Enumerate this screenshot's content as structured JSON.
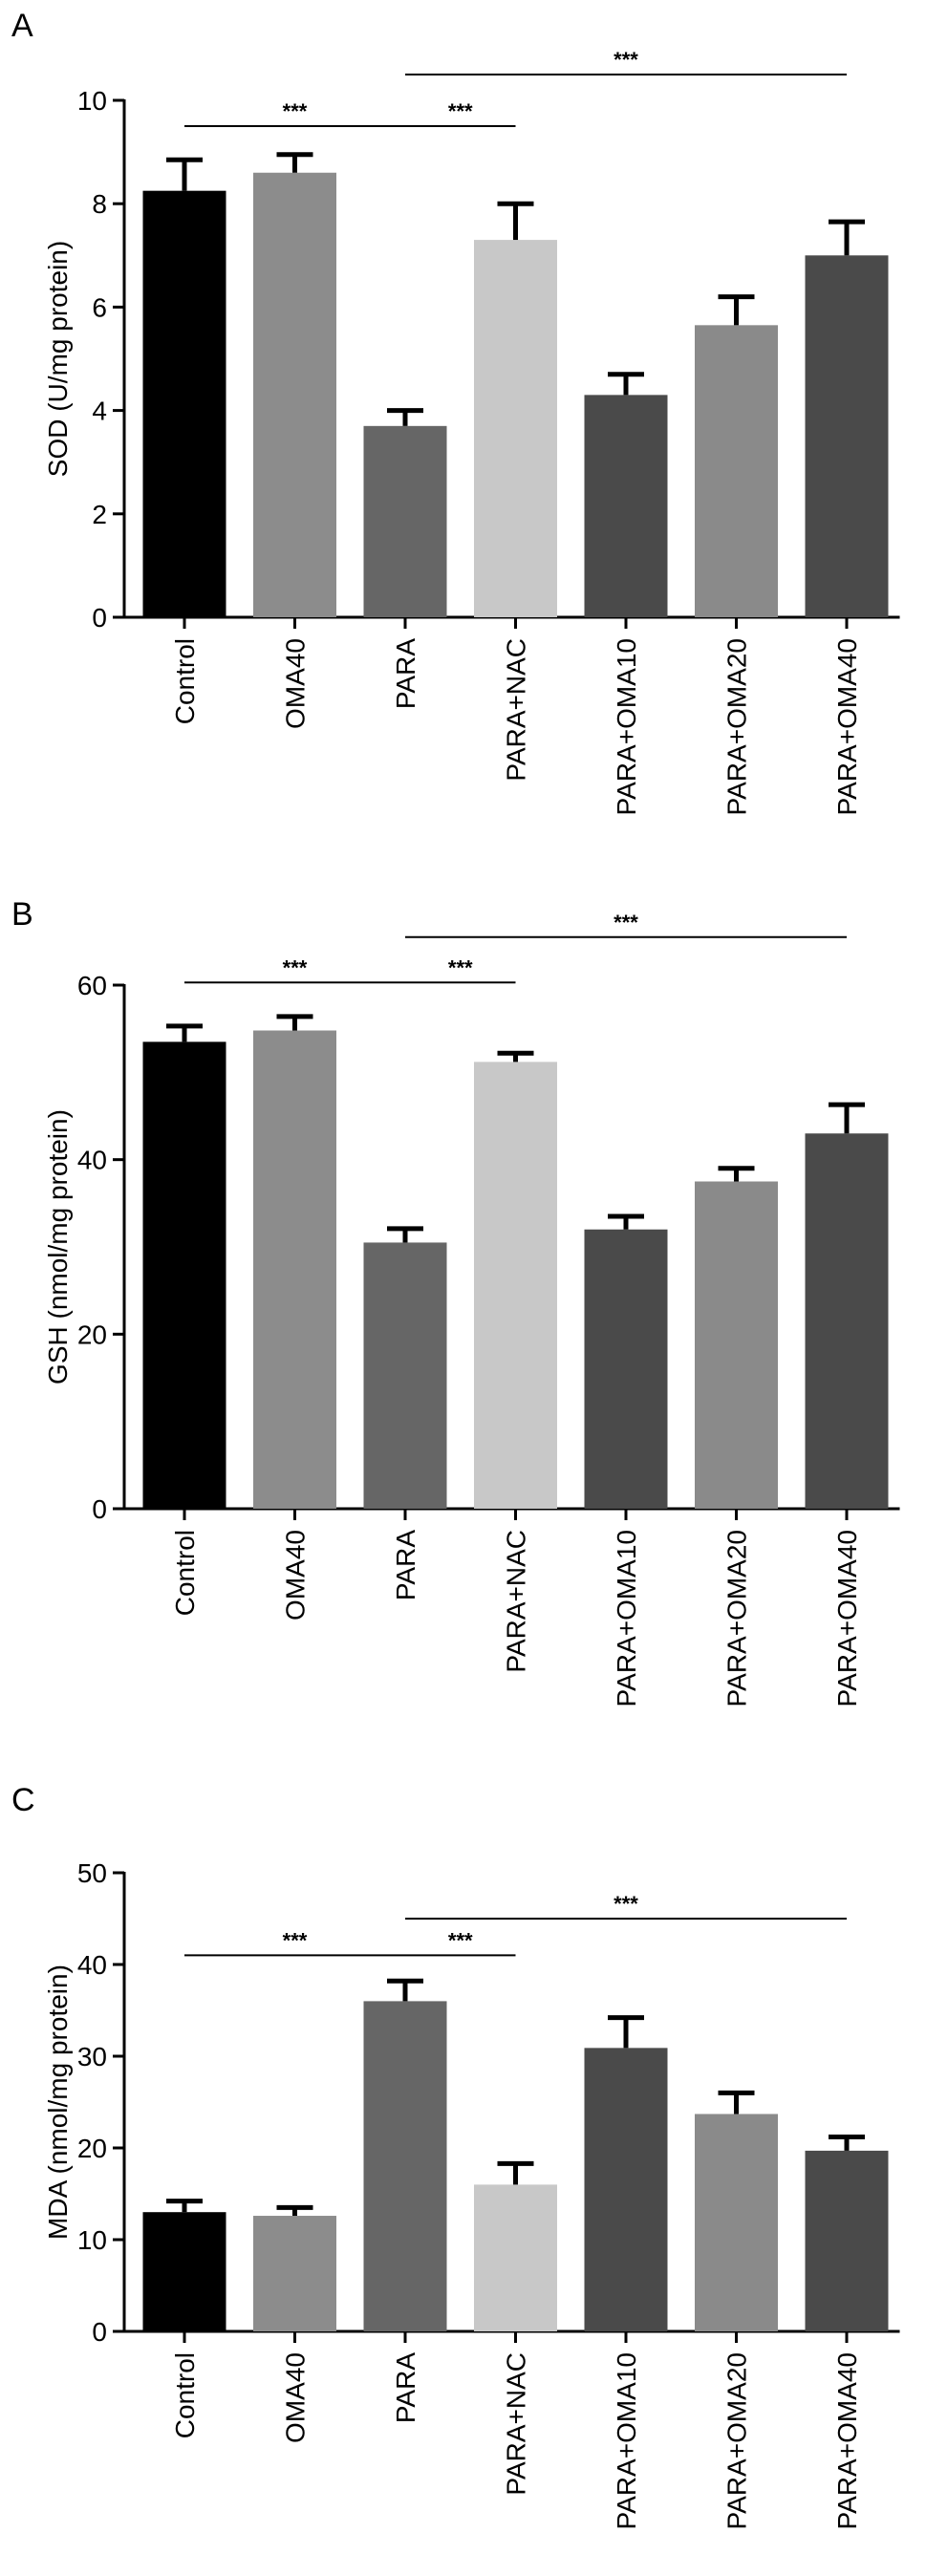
{
  "chart_data": [
    {
      "type": "bar",
      "panel_label": "A",
      "ylabel": "SOD (U/mg protein)",
      "ylim": [
        0,
        10
      ],
      "yticks": [
        "0",
        "2",
        "4",
        "6",
        "8",
        "10"
      ],
      "categories": [
        "Control",
        "OMA40",
        "PARA",
        "PARA+NAC",
        "PARA+OMA10",
        "PARA+OMA20",
        "PARA+OMA40"
      ],
      "values": [
        8.25,
        8.6,
        3.7,
        7.3,
        4.3,
        5.65,
        7.0
      ],
      "errors": [
        0.6,
        0.35,
        0.3,
        0.7,
        0.4,
        0.55,
        0.65
      ],
      "colors": [
        "#000000",
        "#8c8c8c",
        "#666666",
        "#c8c8c8",
        "#4a4a4a",
        "#8a8a8a",
        "#4a4a4a"
      ],
      "significance": [
        {
          "from": 0,
          "to": 2,
          "label": "***",
          "y": 9.5
        },
        {
          "from": 2,
          "to": 3,
          "label": "***",
          "y": 9.5
        },
        {
          "from": 2,
          "to": 6,
          "label": "***",
          "y": 10.5
        }
      ]
    },
    {
      "type": "bar",
      "panel_label": "B",
      "ylabel": "GSH (nmol/mg protein)",
      "ylim": [
        0,
        60
      ],
      "yticks": [
        "0",
        "20",
        "40",
        "60"
      ],
      "categories": [
        "Control",
        "OMA40",
        "PARA",
        "PARA+NAC",
        "PARA+OMA10",
        "PARA+OMA20",
        "PARA+OMA40"
      ],
      "values": [
        53.5,
        54.8,
        30.5,
        51.2,
        32.0,
        37.5,
        43.0
      ],
      "errors": [
        1.8,
        1.6,
        1.6,
        1.0,
        1.5,
        1.5,
        3.3
      ],
      "colors": [
        "#000000",
        "#8c8c8c",
        "#666666",
        "#c8c8c8",
        "#4a4a4a",
        "#8a8a8a",
        "#4a4a4a"
      ],
      "significance": [
        {
          "from": 0,
          "to": 2,
          "label": "***",
          "y": 60.3
        },
        {
          "from": 2,
          "to": 3,
          "label": "***",
          "y": 60.3
        },
        {
          "from": 2,
          "to": 6,
          "label": "***",
          "y": 65.5
        }
      ]
    },
    {
      "type": "bar",
      "panel_label": "C",
      "ylabel": "MDA (nmol/mg protein)",
      "ylim": [
        0,
        50
      ],
      "yticks": [
        "0",
        "10",
        "20",
        "30",
        "40",
        "50"
      ],
      "categories": [
        "Control",
        "OMA40",
        "PARA",
        "PARA+NAC",
        "PARA+OMA10",
        "PARA+OMA20",
        "PARA+OMA40"
      ],
      "values": [
        13.0,
        12.6,
        36.0,
        16.0,
        30.9,
        23.7,
        19.7
      ],
      "errors": [
        1.2,
        0.9,
        2.2,
        2.3,
        3.3,
        2.3,
        1.5
      ],
      "colors": [
        "#000000",
        "#8c8c8c",
        "#666666",
        "#c8c8c8",
        "#4a4a4a",
        "#8a8a8a",
        "#4a4a4a"
      ],
      "significance": [
        {
          "from": 0,
          "to": 2,
          "label": "***",
          "y": 41.0
        },
        {
          "from": 2,
          "to": 3,
          "label": "***",
          "y": 41.0
        },
        {
          "from": 2,
          "to": 6,
          "label": "***",
          "y": 45.0
        }
      ]
    }
  ]
}
